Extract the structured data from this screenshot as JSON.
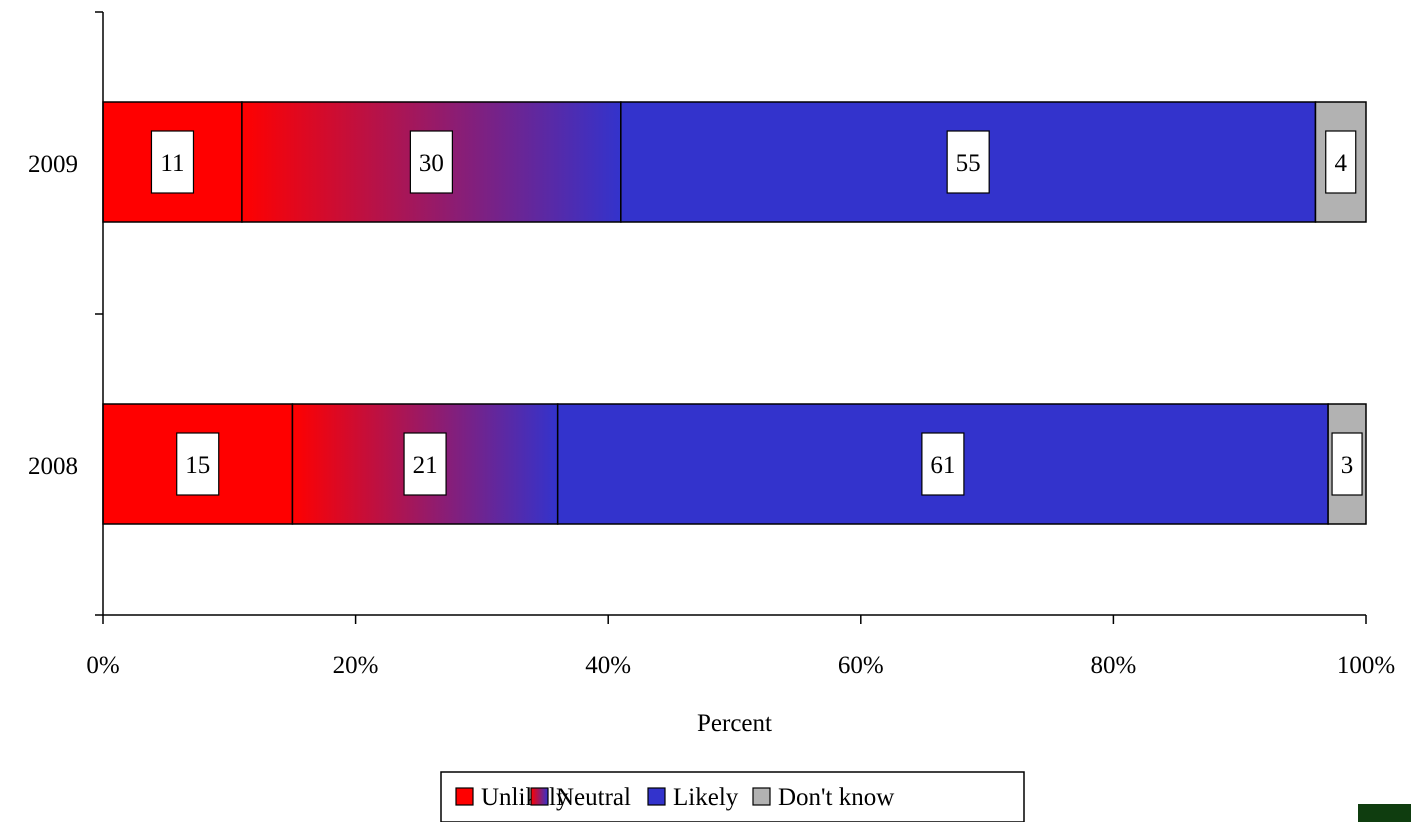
{
  "chart_data": {
    "type": "bar",
    "orientation": "horizontal",
    "stacked": true,
    "percent_stacked": true,
    "title": "",
    "categories": [
      "2009",
      "2008"
    ],
    "series": [
      {
        "name": "Unlikely",
        "values": [
          11,
          15
        ],
        "color": "#ff0000"
      },
      {
        "name": "Neutral",
        "values": [
          30,
          21
        ],
        "color_from": "#ff0000",
        "color_to": "#3333cc"
      },
      {
        "name": "Likely",
        "values": [
          55,
          61
        ],
        "color": "#3333cc"
      },
      {
        "name": "Don't know",
        "values": [
          4,
          3
        ],
        "color": "#b2b2b2"
      }
    ],
    "xlabel": "Percent",
    "ylabel": "",
    "xlim": [
      0,
      100
    ],
    "xticks": [
      "0%",
      "20%",
      "40%",
      "60%",
      "80%",
      "100%"
    ],
    "grid": false,
    "legend": "bottom"
  }
}
